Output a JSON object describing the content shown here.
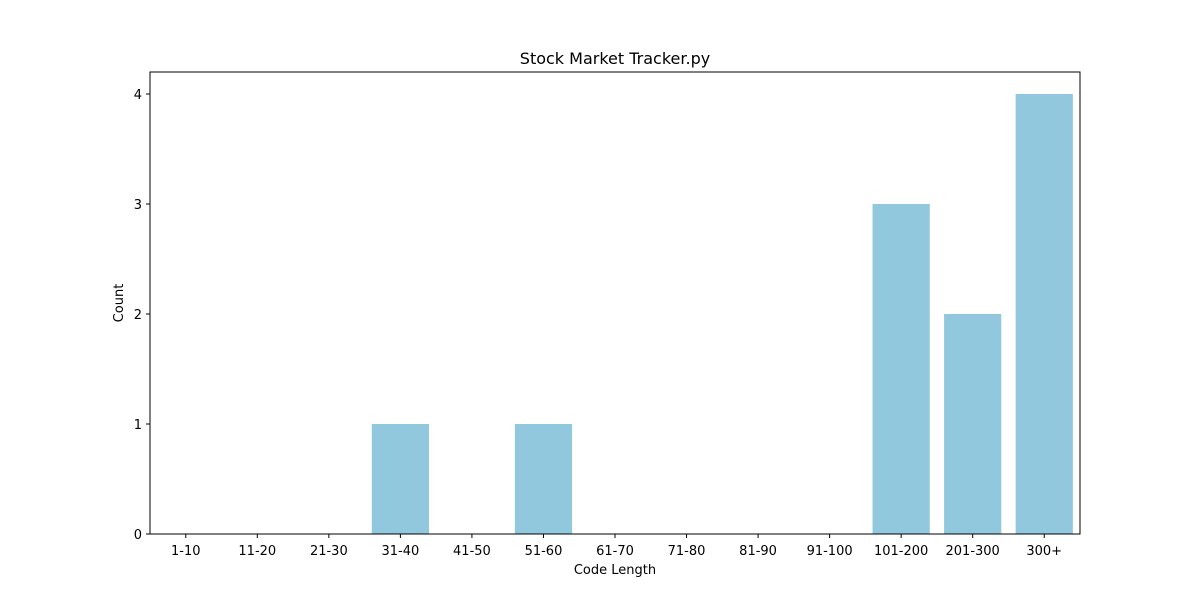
{
  "chart_data": {
    "type": "bar",
    "title": "Stock Market Tracker.py",
    "xlabel": "Code Length",
    "ylabel": "Count",
    "categories": [
      "1-10",
      "11-20",
      "21-30",
      "31-40",
      "41-50",
      "51-60",
      "61-70",
      "71-80",
      "81-90",
      "91-100",
      "101-200",
      "201-300",
      "300+"
    ],
    "values": [
      0,
      0,
      0,
      1,
      0,
      1,
      0,
      0,
      0,
      0,
      3,
      2,
      4
    ],
    "ylim": [
      0,
      4.2
    ],
    "yticks": [
      0,
      1,
      2,
      3,
      4
    ],
    "grid": false,
    "legend": "none",
    "bar_color": "#92c8de"
  }
}
